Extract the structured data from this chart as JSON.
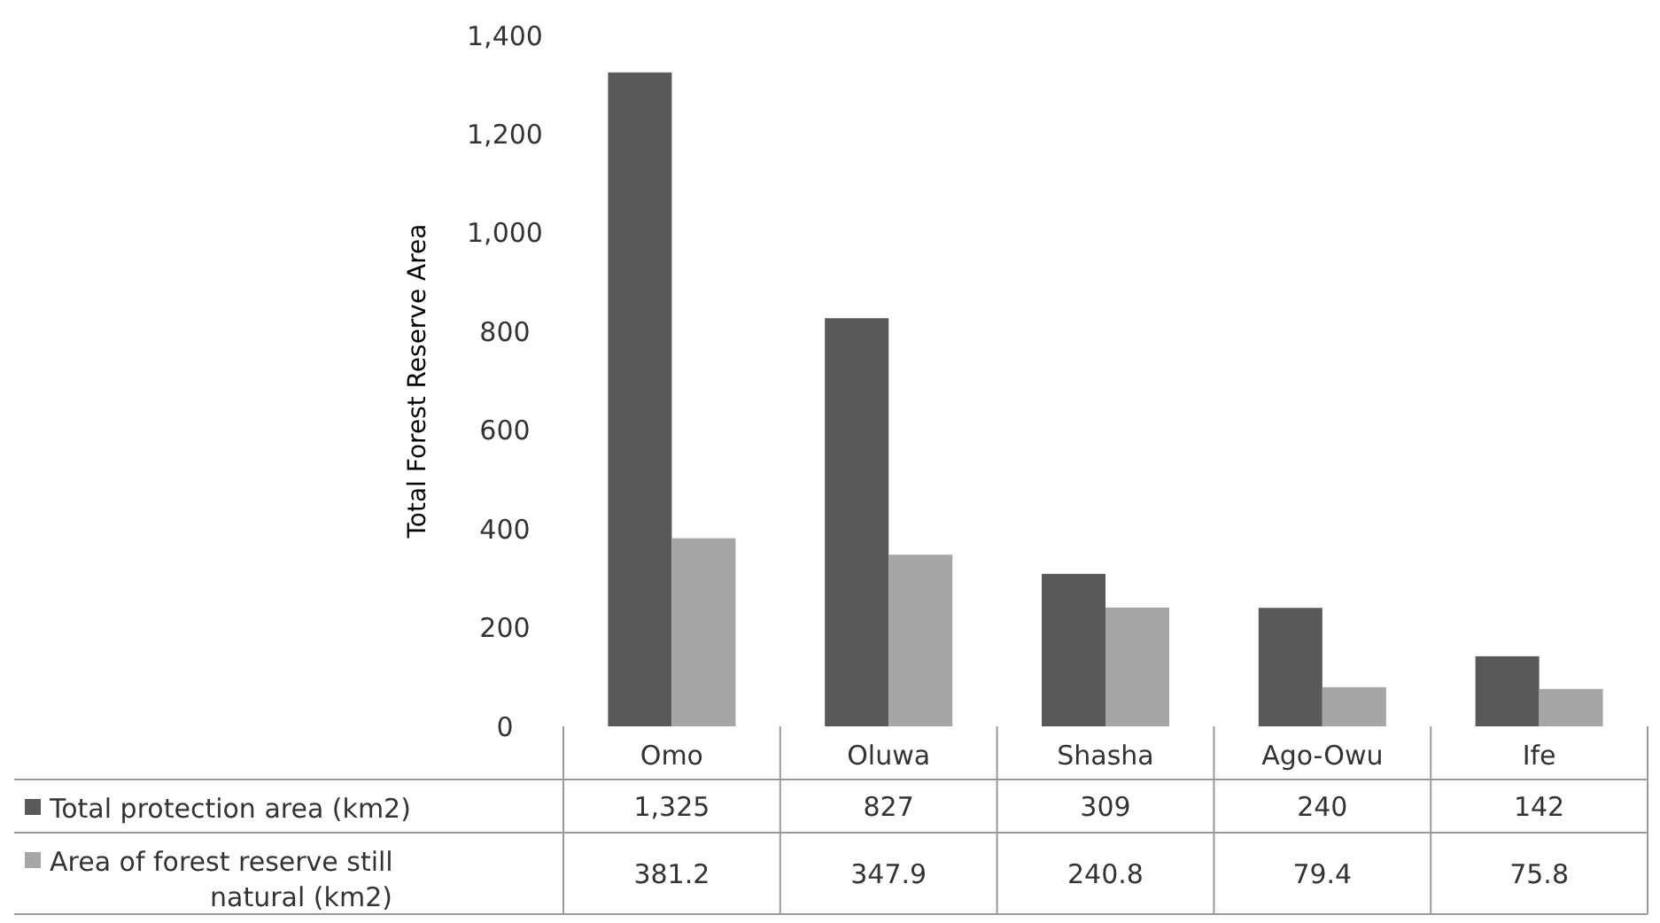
{
  "chart_data": {
    "type": "bar",
    "ylabel": "Total Forest Reserve Area",
    "categories": [
      "Omo",
      "Oluwa",
      "Shasha",
      "Ago-Owu",
      "Ife"
    ],
    "series": [
      {
        "name": "Total protection area (km2)",
        "color": "#595959",
        "values": [
          1325,
          827,
          309,
          240,
          142
        ],
        "value_labels": [
          "1,325",
          "827",
          "309",
          "240",
          "142"
        ]
      },
      {
        "name": "Area of forest reserve still natural (km2)",
        "color": "#a6a6a6",
        "values": [
          381.2,
          347.9,
          240.8,
          79.4,
          75.8
        ],
        "value_labels": [
          "381.2",
          "347.9",
          "240.8",
          "79.4",
          "75.8"
        ]
      }
    ],
    "ylim": [
      0,
      1400
    ],
    "yticks": [
      0,
      200,
      400,
      600,
      800,
      {
        "value": 1000,
        "label": "1,000"
      },
      {
        "value": 1200,
        "label": "1,200"
      },
      {
        "value": 1400,
        "label": "1,400"
      }
    ],
    "grid": false,
    "legend": "bottom"
  }
}
